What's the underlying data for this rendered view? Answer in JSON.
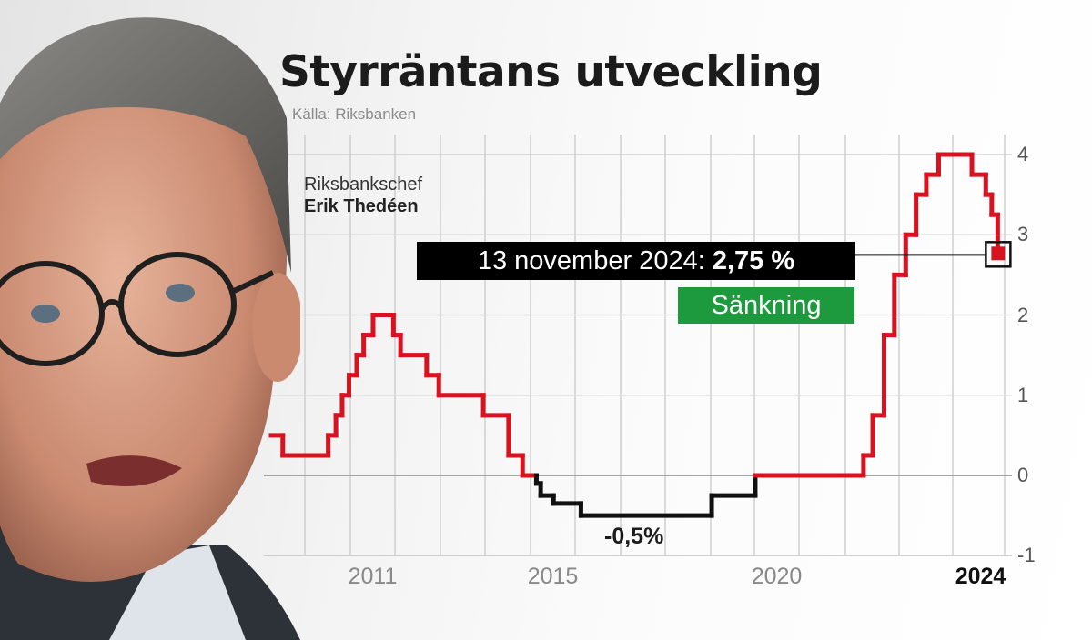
{
  "title": "Styrräntans utveckling",
  "source": "Källa: Riksbanken",
  "person": {
    "role": "Riksbankschef",
    "name": "Erik Thedéen"
  },
  "annotation": {
    "date_label": "13 november 2024: ",
    "value_label": "2,75 %",
    "change_label": "Sänkning"
  },
  "colors": {
    "positive": "#d8121e",
    "negative": "#111111",
    "change_badge": "#1e9a3e"
  },
  "chart_data": {
    "type": "line",
    "step": true,
    "title": "Styrräntans utveckling",
    "ylim": [
      -1,
      4
    ],
    "yticks": [
      "4",
      "3",
      "2",
      "1",
      "0",
      "-1"
    ],
    "xticks": [
      {
        "label": "2011",
        "bold": false
      },
      {
        "label": "2015",
        "bold": false
      },
      {
        "label": "2020",
        "bold": false
      },
      {
        "label": "2024",
        "bold": true
      }
    ],
    "grid": true,
    "min_label": "-0,5%",
    "series": [
      {
        "points": [
          [
            "2009-04-21",
            0.5
          ],
          [
            "2009-07-08",
            0.25
          ],
          [
            "2010-07-07",
            0.5
          ],
          [
            "2010-09-07",
            0.75
          ],
          [
            "2010-10-27",
            1.0
          ],
          [
            "2010-12-21",
            1.25
          ],
          [
            "2011-02-22",
            1.5
          ],
          [
            "2011-04-20",
            1.75
          ],
          [
            "2011-07-06",
            2.0
          ],
          [
            "2011-12-20",
            1.75
          ],
          [
            "2012-02-15",
            1.5
          ],
          [
            "2012-09-12",
            1.25
          ],
          [
            "2012-12-19",
            1.0
          ],
          [
            "2013-12-18",
            0.75
          ],
          [
            "2014-07-09",
            0.25
          ],
          [
            "2014-10-29",
            0.0
          ],
          [
            "2015-02-18",
            -0.1
          ],
          [
            "2015-03-25",
            -0.25
          ],
          [
            "2015-07-08",
            -0.35
          ],
          [
            "2016-02-17",
            -0.5
          ],
          [
            "2019-01-09",
            -0.25
          ],
          [
            "2020-01-08",
            0.0
          ],
          [
            "2022-05-04",
            0.25
          ],
          [
            "2022-07-06",
            0.75
          ],
          [
            "2022-09-21",
            1.75
          ],
          [
            "2022-11-30",
            2.5
          ],
          [
            "2023-02-15",
            3.0
          ],
          [
            "2023-04-26",
            3.5
          ],
          [
            "2023-07-05",
            3.75
          ],
          [
            "2023-09-27",
            4.0
          ],
          [
            "2024-05-15",
            3.75
          ],
          [
            "2024-08-21",
            3.5
          ],
          [
            "2024-10-02",
            3.25
          ],
          [
            "2024-11-13",
            2.75
          ]
        ]
      }
    ]
  }
}
